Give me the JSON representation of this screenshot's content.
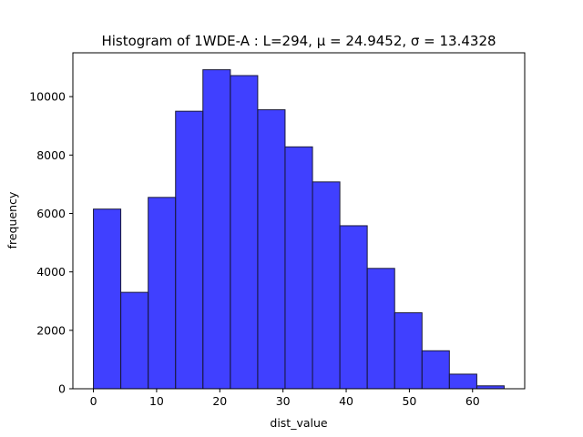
{
  "chart_data": {
    "type": "histogram",
    "title": "Histogram of 1WDE-A : L=294, μ = 24.9452, σ = 13.4328",
    "xlabel": "dist_value",
    "ylabel": "frequency",
    "xlim": [
      -3.25,
      68.25
    ],
    "ylim": [
      0,
      11500
    ],
    "xticks": [
      0,
      10,
      20,
      30,
      40,
      50,
      60
    ],
    "yticks": [
      0,
      2000,
      4000,
      6000,
      8000,
      10000
    ],
    "bar_color": "#0000ff",
    "bar_edge_color": "#1a1a3a",
    "bins": [
      {
        "x0": 0.0,
        "x1": 4.33,
        "value": 6150
      },
      {
        "x0": 4.33,
        "x1": 8.67,
        "value": 3300
      },
      {
        "x0": 8.67,
        "x1": 13.0,
        "value": 6550
      },
      {
        "x0": 13.0,
        "x1": 17.33,
        "value": 9500
      },
      {
        "x0": 17.33,
        "x1": 21.67,
        "value": 10920
      },
      {
        "x0": 21.67,
        "x1": 26.0,
        "value": 10720
      },
      {
        "x0": 26.0,
        "x1": 30.33,
        "value": 9550
      },
      {
        "x0": 30.33,
        "x1": 34.67,
        "value": 8280
      },
      {
        "x0": 34.67,
        "x1": 39.0,
        "value": 7080
      },
      {
        "x0": 39.0,
        "x1": 43.33,
        "value": 5580
      },
      {
        "x0": 43.33,
        "x1": 47.67,
        "value": 4120
      },
      {
        "x0": 47.67,
        "x1": 52.0,
        "value": 2600
      },
      {
        "x0": 52.0,
        "x1": 56.33,
        "value": 1300
      },
      {
        "x0": 56.33,
        "x1": 60.67,
        "value": 500
      },
      {
        "x0": 60.67,
        "x1": 65.0,
        "value": 100
      }
    ]
  }
}
